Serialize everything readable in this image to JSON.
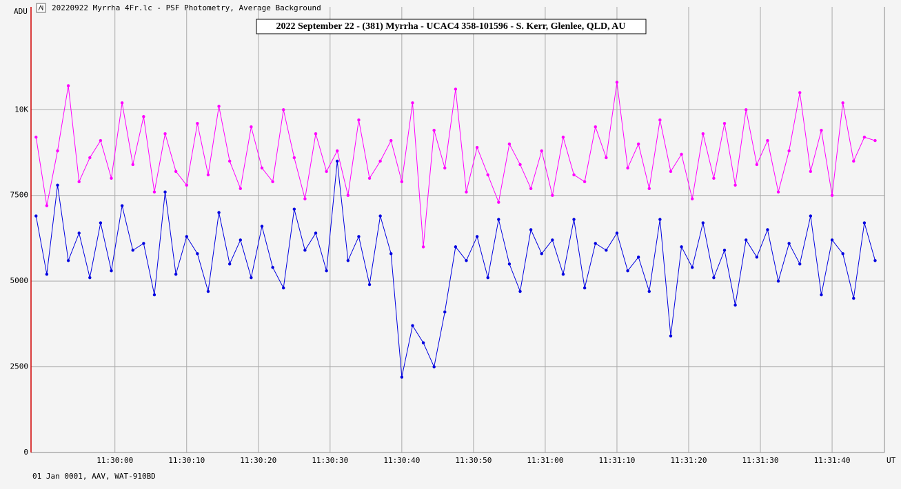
{
  "window_title": "20220922 Myrrha 4Fr.lc - PSF Photometry, Average Background",
  "footer": "01 Jan 0001, AAV, WAT-910BD",
  "chart_data": {
    "type": "line",
    "title": "2022 September 22  - (381) Myrrha - UCAC4 358-101596 - S. Kerr, Glenlee, QLD, AU",
    "y_label": "ADU",
    "x_label": "UT",
    "x": [
      41389,
      41390.5,
      41392,
      41393.5,
      41395,
      41396.5,
      41398,
      41399.5,
      41401,
      41402.5,
      41404,
      41405.5,
      41407,
      41408.5,
      41410,
      41411.5,
      41413,
      41414.5,
      41416,
      41417.5,
      41419,
      41420.5,
      41422,
      41423.5,
      41425,
      41426.5,
      41428,
      41429.5,
      41431,
      41432.5,
      41434,
      41435.5,
      41437,
      41438.5,
      41440,
      41441.5,
      41443,
      41444.5,
      41446,
      41447.5,
      41449,
      41450.5,
      41452,
      41453.5,
      41455,
      41456.5,
      41458,
      41459.5,
      41461,
      41462.5,
      41464,
      41465.5,
      41467,
      41468.5,
      41470,
      41471.5,
      41473,
      41474.5,
      41476,
      41477.5,
      41479,
      41480.5,
      41482,
      41483.5,
      41485,
      41486.5,
      41488,
      41489.5,
      41491,
      41492.5,
      41494,
      41495.5,
      41497,
      41498.5,
      41500,
      41501.5,
      41503,
      41504.5,
      41506
    ],
    "series": [
      {
        "color": "#ff00ff",
        "values": [
          9200,
          7200,
          8800,
          10700,
          7900,
          8600,
          9100,
          8000,
          10200,
          8400,
          9800,
          7600,
          9300,
          8200,
          7800,
          9600,
          8100,
          10100,
          8500,
          7700,
          9500,
          8300,
          7900,
          10000,
          8600,
          7400,
          9300,
          8200,
          8800,
          7500,
          9700,
          8000,
          8500,
          9100,
          7900,
          10200,
          6000,
          9400,
          8300,
          10600,
          7600,
          8900,
          8100,
          7300,
          9000,
          8400,
          7700,
          8800,
          7500,
          9200,
          8100,
          7900,
          9500,
          8600,
          10800,
          8300,
          9000,
          7700,
          9700,
          8200,
          8700,
          7400,
          9300,
          8000,
          9600,
          7800,
          10000,
          8400,
          9100,
          7600,
          8800,
          10500,
          8200,
          9400,
          7500,
          10200,
          8500,
          9200,
          9100
        ]
      },
      {
        "color": "#0000e0",
        "values": [
          6900,
          5200,
          7800,
          5600,
          6400,
          5100,
          6700,
          5300,
          7200,
          5900,
          6100,
          4600,
          7600,
          5200,
          6300,
          5800,
          4700,
          7000,
          5500,
          6200,
          5100,
          6600,
          5400,
          4800,
          7100,
          5900,
          6400,
          5300,
          8500,
          5600,
          6300,
          4900,
          6900,
          5800,
          2200,
          3700,
          3200,
          2500,
          4100,
          6000,
          5600,
          6300,
          5100,
          6800,
          5500,
          4700,
          6500,
          5800,
          6200,
          5200,
          6800,
          4800,
          6100,
          5900,
          6400,
          5300,
          5700,
          4700,
          6800,
          3400,
          6000,
          5400,
          6700,
          5100,
          5900,
          4300,
          6200,
          5700,
          6500,
          5000,
          6100,
          5500,
          6900,
          4600,
          6200,
          5800,
          4500,
          6700,
          5600
        ]
      }
    ],
    "xlim": [
      41388.3,
      41507.3
    ],
    "xticks": [
      {
        "value": 41400,
        "label": "11:30:00"
      },
      {
        "value": 41410,
        "label": "11:30:10"
      },
      {
        "value": 41420,
        "label": "11:30:20"
      },
      {
        "value": 41430,
        "label": "11:30:30"
      },
      {
        "value": 41440,
        "label": "11:30:40"
      },
      {
        "value": 41450,
        "label": "11:30:50"
      },
      {
        "value": 41460,
        "label": "11:31:00"
      },
      {
        "value": 41470,
        "label": "11:31:10"
      },
      {
        "value": 41480,
        "label": "11:31:20"
      },
      {
        "value": 41490,
        "label": "11:31:30"
      },
      {
        "value": 41500,
        "label": "11:31:40"
      }
    ],
    "ylim": [
      0,
      13000
    ],
    "yticks": [
      0,
      2500,
      5000,
      7500,
      {
        "value": 10000,
        "label": "10K"
      }
    ],
    "grid": true
  }
}
